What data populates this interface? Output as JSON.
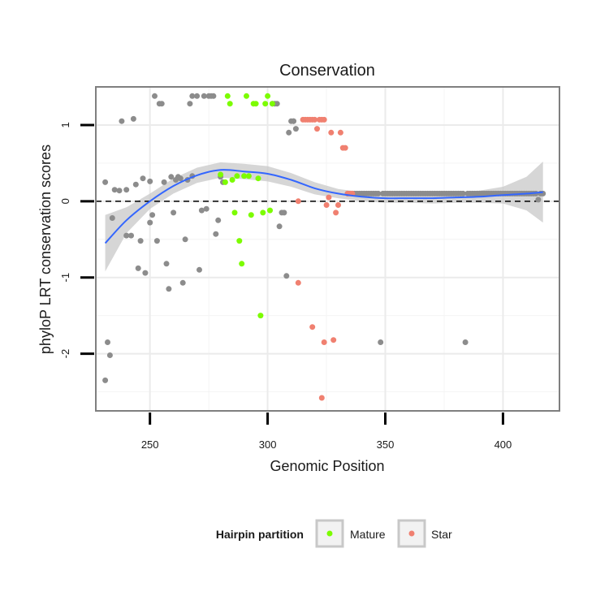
{
  "chart_data": {
    "type": "scatter",
    "title": "Conservation",
    "xlabel": "Genomic Position",
    "ylabel": "phyloP LRT conservation scores",
    "xlim": [
      227,
      424
    ],
    "ylim": [
      -2.75,
      1.5
    ],
    "x_ticks": [
      250,
      300,
      350,
      400
    ],
    "y_ticks": [
      -2,
      -1,
      0,
      1
    ],
    "reference_line": {
      "y": 0,
      "style": "dashed"
    },
    "legend": {
      "title": "Hairpin partition",
      "position": "bottom",
      "entries": [
        {
          "label": "Mature",
          "color": "#7CFC00"
        },
        {
          "label": "Star",
          "color": "#F08070"
        }
      ]
    },
    "colors": {
      "other": "#8C8C8C",
      "Mature": "#7CFC00",
      "Star": "#F08070",
      "smooth": "#3366FF",
      "ribbon": "#C8C8C8"
    },
    "series": [
      {
        "name": "Other",
        "points": [
          [
            231,
            0.25
          ],
          [
            231,
            -2.35
          ],
          [
            232,
            -1.85
          ],
          [
            233,
            -2.02
          ],
          [
            234,
            -0.22
          ],
          [
            235,
            0.15
          ],
          [
            237,
            0.14
          ],
          [
            238,
            1.05
          ],
          [
            240,
            0.15
          ],
          [
            240,
            -0.45
          ],
          [
            242,
            -0.45
          ],
          [
            243,
            1.08
          ],
          [
            244,
            0.22
          ],
          [
            245,
            -0.88
          ],
          [
            246,
            -0.52
          ],
          [
            247,
            0.3
          ],
          [
            248,
            -0.94
          ],
          [
            250,
            0.26
          ],
          [
            250,
            -0.28
          ],
          [
            251,
            -0.18
          ],
          [
            252,
            1.38
          ],
          [
            253,
            -0.52
          ],
          [
            254,
            1.28
          ],
          [
            255,
            1.28
          ],
          [
            256,
            0.25
          ],
          [
            257,
            -0.82
          ],
          [
            258,
            -1.15
          ],
          [
            259,
            0.32
          ],
          [
            260,
            -0.15
          ],
          [
            261,
            0.28
          ],
          [
            262,
            0.32
          ],
          [
            263,
            0.3
          ],
          [
            264,
            -1.07
          ],
          [
            265,
            -0.5
          ],
          [
            266,
            0.28
          ],
          [
            267,
            1.28
          ],
          [
            268,
            0.33
          ],
          [
            268,
            1.38
          ],
          [
            270,
            1.38
          ],
          [
            271,
            -0.9
          ],
          [
            272,
            -0.12
          ],
          [
            273,
            1.38
          ],
          [
            274,
            -0.1
          ],
          [
            275,
            1.38
          ],
          [
            276,
            1.38
          ],
          [
            277,
            1.38
          ],
          [
            278,
            -0.43
          ],
          [
            279,
            -0.25
          ],
          [
            280,
            0.32
          ],
          [
            281,
            0.25
          ],
          [
            302,
            1.28
          ],
          [
            303,
            1.28
          ],
          [
            304,
            1.28
          ],
          [
            305,
            -0.33
          ],
          [
            306,
            -0.15
          ],
          [
            307,
            -0.15
          ],
          [
            308,
            -0.98
          ],
          [
            309,
            0.9
          ],
          [
            310,
            1.05
          ],
          [
            311,
            1.05
          ],
          [
            311,
            1.05
          ],
          [
            312,
            0.95
          ],
          [
            334,
            0.1
          ],
          [
            336,
            0.1
          ],
          [
            337,
            0.1
          ],
          [
            338,
            0.1
          ],
          [
            339,
            0.1
          ],
          [
            340,
            0.1
          ],
          [
            341,
            0.1
          ],
          [
            342,
            0.1
          ],
          [
            343,
            0.1
          ],
          [
            344,
            0.1
          ],
          [
            345,
            0.1
          ],
          [
            346,
            0.1
          ],
          [
            347,
            0.1
          ],
          [
            348,
            -1.85
          ],
          [
            349,
            0.1
          ],
          [
            350,
            0.1
          ],
          [
            351,
            0.1
          ],
          [
            352,
            0.1
          ],
          [
            353,
            0.1
          ],
          [
            354,
            0.1
          ],
          [
            355,
            0.1
          ],
          [
            356,
            0.1
          ],
          [
            357,
            0.1
          ],
          [
            358,
            0.1
          ],
          [
            359,
            0.1
          ],
          [
            360,
            0.1
          ],
          [
            361,
            0.1
          ],
          [
            362,
            0.1
          ],
          [
            363,
            0.1
          ],
          [
            364,
            0.1
          ],
          [
            365,
            0.1
          ],
          [
            366,
            0.1
          ],
          [
            367,
            0.1
          ],
          [
            368,
            0.1
          ],
          [
            369,
            0.1
          ],
          [
            370,
            0.1
          ],
          [
            371,
            0.1
          ],
          [
            372,
            0.1
          ],
          [
            373,
            0.1
          ],
          [
            374,
            0.1
          ],
          [
            375,
            0.1
          ],
          [
            376,
            0.1
          ],
          [
            377,
            0.1
          ],
          [
            378,
            0.1
          ],
          [
            379,
            0.1
          ],
          [
            380,
            0.1
          ],
          [
            381,
            0.1
          ],
          [
            382,
            0.1
          ],
          [
            383,
            0.1
          ],
          [
            384,
            -1.85
          ],
          [
            385,
            0.1
          ],
          [
            386,
            0.1
          ],
          [
            387,
            0.1
          ],
          [
            388,
            0.1
          ],
          [
            389,
            0.1
          ],
          [
            390,
            0.1
          ],
          [
            391,
            0.1
          ],
          [
            392,
            0.1
          ],
          [
            393,
            0.1
          ],
          [
            394,
            0.1
          ],
          [
            395,
            0.1
          ],
          [
            396,
            0.1
          ],
          [
            397,
            0.1
          ],
          [
            398,
            0.1
          ],
          [
            399,
            0.1
          ],
          [
            400,
            0.1
          ],
          [
            401,
            0.1
          ],
          [
            402,
            0.1
          ],
          [
            403,
            0.1
          ],
          [
            404,
            0.1
          ],
          [
            405,
            0.1
          ],
          [
            406,
            0.1
          ],
          [
            407,
            0.1
          ],
          [
            408,
            0.1
          ],
          [
            409,
            0.1
          ],
          [
            410,
            0.1
          ],
          [
            411,
            0.1
          ],
          [
            412,
            0.1
          ],
          [
            413,
            0.1
          ],
          [
            414,
            0.1
          ],
          [
            415,
            0.02
          ],
          [
            416,
            0.1
          ],
          [
            417,
            0.1
          ]
        ]
      },
      {
        "name": "Mature",
        "points": [
          [
            280,
            0.35
          ],
          [
            282,
            0.25
          ],
          [
            283,
            1.38
          ],
          [
            284,
            1.28
          ],
          [
            285,
            0.28
          ],
          [
            286,
            -0.15
          ],
          [
            287,
            0.33
          ],
          [
            288,
            -0.52
          ],
          [
            289,
            -0.82
          ],
          [
            290,
            0.33
          ],
          [
            291,
            1.38
          ],
          [
            292,
            0.33
          ],
          [
            293,
            -0.18
          ],
          [
            294,
            1.28
          ],
          [
            295,
            1.28
          ],
          [
            296,
            0.3
          ],
          [
            297,
            -1.5
          ],
          [
            298,
            -0.15
          ],
          [
            299,
            1.28
          ],
          [
            300,
            1.38
          ],
          [
            301,
            -0.12
          ],
          [
            302,
            1.28
          ]
        ]
      },
      {
        "name": "Star",
        "points": [
          [
            313,
            0.0
          ],
          [
            313,
            -1.07
          ],
          [
            315,
            1.07
          ],
          [
            316,
            1.07
          ],
          [
            317,
            1.07
          ],
          [
            318,
            1.07
          ],
          [
            319,
            1.07
          ],
          [
            319,
            -1.65
          ],
          [
            320,
            1.07
          ],
          [
            321,
            0.95
          ],
          [
            322,
            1.07
          ],
          [
            323,
            1.07
          ],
          [
            323,
            -2.58
          ],
          [
            324,
            1.07
          ],
          [
            324,
            -1.85
          ],
          [
            325,
            -0.05
          ],
          [
            326,
            0.05
          ],
          [
            327,
            0.9
          ],
          [
            328,
            -1.82
          ],
          [
            329,
            -0.15
          ],
          [
            330,
            -0.05
          ],
          [
            331,
            0.9
          ],
          [
            332,
            0.7
          ],
          [
            333,
            0.7
          ],
          [
            334,
            0.1
          ],
          [
            335,
            0.1
          ],
          [
            336,
            0.1
          ]
        ]
      }
    ],
    "smooth": {
      "method": "loess",
      "x": [
        231,
        240,
        250,
        260,
        270,
        280,
        290,
        300,
        310,
        320,
        330,
        340,
        350,
        360,
        370,
        380,
        390,
        400,
        410,
        417
      ],
      "y": [
        -0.55,
        -0.25,
        0.0,
        0.2,
        0.34,
        0.41,
        0.39,
        0.36,
        0.28,
        0.17,
        0.1,
        0.06,
        0.04,
        0.04,
        0.04,
        0.05,
        0.06,
        0.08,
        0.1,
        0.12
      ],
      "se_lower": [
        -0.92,
        -0.42,
        -0.1,
        0.1,
        0.24,
        0.31,
        0.29,
        0.26,
        0.19,
        0.09,
        0.04,
        0.0,
        -0.02,
        -0.02,
        -0.03,
        -0.02,
        -0.02,
        -0.03,
        -0.12,
        -0.28
      ],
      "se_upper": [
        -0.18,
        -0.08,
        0.1,
        0.3,
        0.44,
        0.51,
        0.49,
        0.46,
        0.37,
        0.25,
        0.16,
        0.12,
        0.1,
        0.1,
        0.11,
        0.12,
        0.14,
        0.19,
        0.32,
        0.52
      ]
    }
  }
}
